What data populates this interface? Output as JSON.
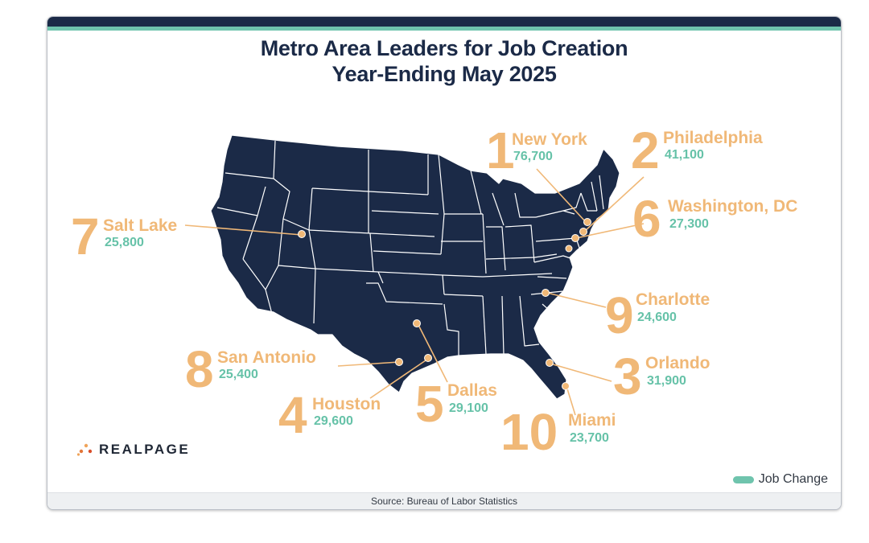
{
  "title": {
    "line1": "Metro Area Leaders for Job Creation",
    "line2": "Year-Ending May 2025"
  },
  "colors": {
    "navy": "#1b2a47",
    "orange": "#f0b877",
    "teal": "#6fc4ad",
    "state_line": "#ffffff"
  },
  "metros": [
    {
      "rank": "1",
      "name": "New York",
      "jobs": "76,700"
    },
    {
      "rank": "2",
      "name": "Philadelphia",
      "jobs": "41,100"
    },
    {
      "rank": "3",
      "name": "Orlando",
      "jobs": "31,900"
    },
    {
      "rank": "4",
      "name": "Houston",
      "jobs": "29,600"
    },
    {
      "rank": "5",
      "name": "Dallas",
      "jobs": "29,100"
    },
    {
      "rank": "6",
      "name": "Washington, DC",
      "jobs": "27,300"
    },
    {
      "rank": "7",
      "name": "Salt Lake",
      "jobs": "25,800"
    },
    {
      "rank": "8",
      "name": "San Antonio",
      "jobs": "25,400"
    },
    {
      "rank": "9",
      "name": "Charlotte",
      "jobs": "24,600"
    },
    {
      "rank": "10",
      "name": "Miami",
      "jobs": "23,700"
    }
  ],
  "legend": {
    "label": "Job Change"
  },
  "brand": {
    "name": "REALPAGE"
  },
  "footer": {
    "source": "Source: Bureau of Labor Statistics"
  }
}
